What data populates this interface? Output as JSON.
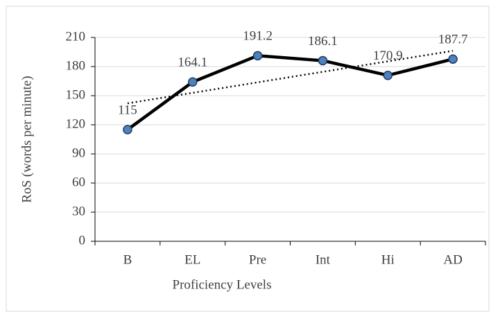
{
  "chart_data": {
    "type": "line",
    "x_label": "Proficiency Levels",
    "y_label": "RoS (words per minute)",
    "categories": [
      "B",
      "EL",
      "Pre",
      "Int",
      "Hi",
      "AD"
    ],
    "series": [
      {
        "name": "RoS",
        "color": "#000000",
        "marker_color": "#4f81bd",
        "values": [
          115,
          164.1,
          191.2,
          186.1,
          170.9,
          187.7
        ]
      }
    ],
    "trendline": "linear",
    "ylim": [
      0,
      210
    ],
    "yticks": [
      0,
      30,
      60,
      90,
      120,
      150,
      180,
      210
    ],
    "grid": true
  }
}
